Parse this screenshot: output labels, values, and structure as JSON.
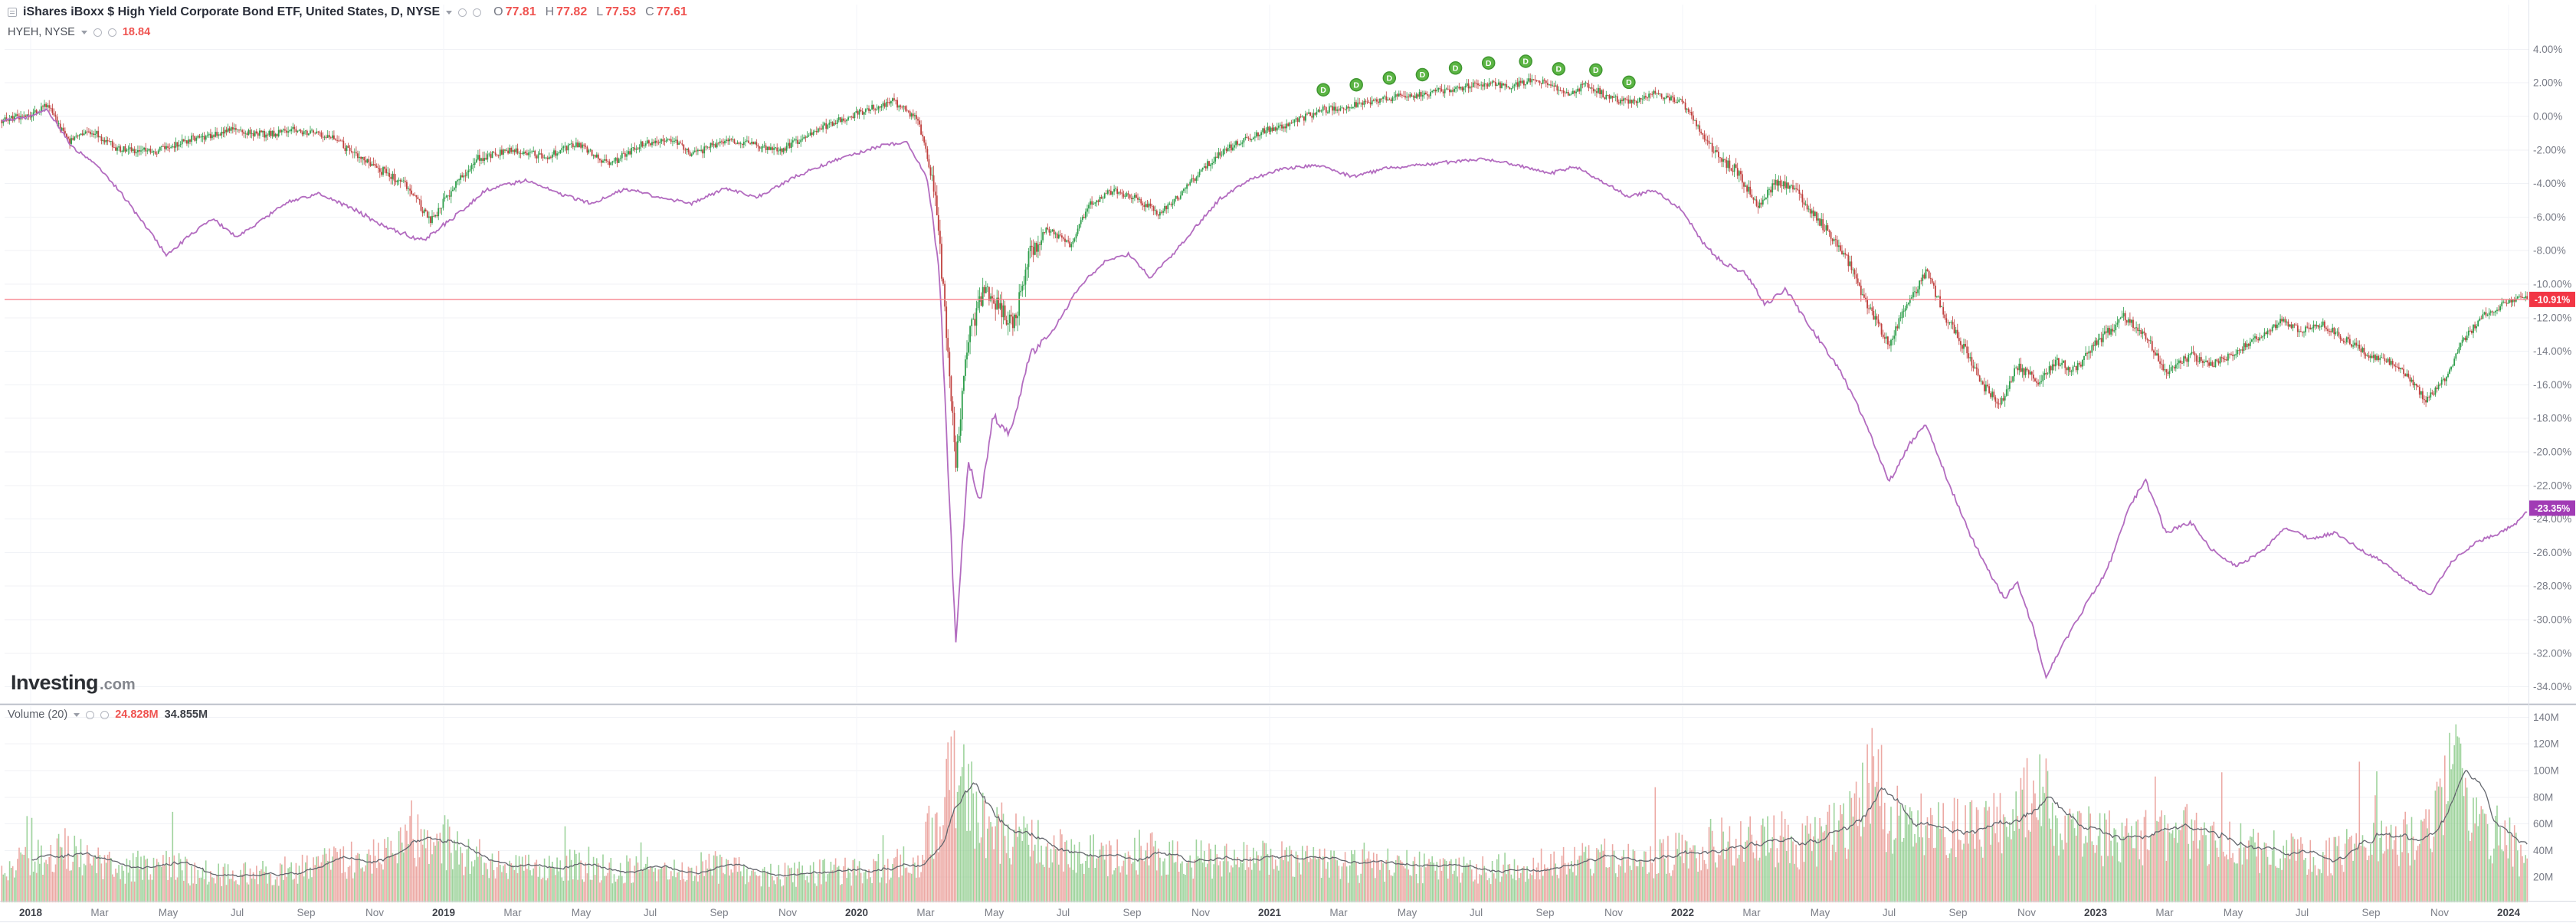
{
  "app": {
    "name": "Investing.com interactive price chart"
  },
  "header": {
    "instrument": {
      "title": "iShares iBoxx $ High Yield Corporate Bond ETF, United States, D, NYSE",
      "ohlc": {
        "o_label": "O",
        "o_value": "77.81",
        "h_label": "H",
        "h_value": "77.82",
        "l_label": "L",
        "l_value": "77.53",
        "c_label": "C",
        "c_value": "77.61"
      }
    },
    "compare": {
      "title": "HYEH, NYSE",
      "value": "18.84"
    }
  },
  "logo": {
    "brand": "Investing",
    "tld": ".com"
  },
  "volume_legend": {
    "label": "Volume (20)",
    "current": "24.828M",
    "ma": "34.855M"
  },
  "badges": {
    "last_price": "-10.91%",
    "compare": "-23.35%"
  },
  "colors": {
    "candle_up": "#2e9e4b",
    "candle_down": "#c0403e",
    "compare_line": "#b36cc0",
    "last_price_line": "#f7848e",
    "last_price_badge": "#f23645",
    "compare_badge": "#a13bb5",
    "vol_up": "#94cf92",
    "vol_down": "#eaa09b",
    "vol_ma": "#63666d",
    "marker_fill": "#5cb544",
    "marker_stroke": "#3f9630",
    "ohlc_value": "#ef5350",
    "grid": "#f0f2f6",
    "axis_text": "#787b86"
  },
  "chart_data": {
    "type": "candlestick",
    "title": "iShares iBoxx $ High Yield Corporate Bond ETF (candles) vs HYEH (line), daily % change 2018-2024",
    "x_range": [
      2017.93,
      2024.048
    ],
    "y_axis": {
      "unit": "%",
      "max": 4,
      "min": -34,
      "step": 2
    },
    "x_axis": {
      "years": [
        2018,
        2019,
        2020,
        2021,
        2022,
        2023,
        2024
      ],
      "month_labels": [
        "Mar",
        "May",
        "Jul",
        "Sep",
        "Nov"
      ],
      "month_offsets": [
        0.167,
        0.333,
        0.5,
        0.667,
        0.833
      ]
    },
    "last_price_pct": -10.91,
    "compare_last_pct": -23.35,
    "series": [
      {
        "name": "iShares iBoxx $ High Yield Corporate Bond ETF (% change, candles)",
        "anchors": [
          [
            2017.93,
            -0.2
          ],
          [
            2018.0,
            0.1
          ],
          [
            2018.04,
            0.7
          ],
          [
            2018.09,
            -1.5
          ],
          [
            2018.15,
            -0.9
          ],
          [
            2018.21,
            -1.9
          ],
          [
            2018.3,
            -2.1
          ],
          [
            2018.38,
            -1.4
          ],
          [
            2018.49,
            -0.8
          ],
          [
            2018.57,
            -1.1
          ],
          [
            2018.64,
            -0.8
          ],
          [
            2018.72,
            -1.1
          ],
          [
            2018.78,
            -2.2
          ],
          [
            2018.84,
            -3.1
          ],
          [
            2018.9,
            -3.9
          ],
          [
            2018.97,
            -6.2
          ],
          [
            2019.02,
            -4.4
          ],
          [
            2019.08,
            -2.5
          ],
          [
            2019.16,
            -2.0
          ],
          [
            2019.25,
            -2.4
          ],
          [
            2019.32,
            -1.6
          ],
          [
            2019.4,
            -2.9
          ],
          [
            2019.48,
            -1.6
          ],
          [
            2019.55,
            -1.3
          ],
          [
            2019.6,
            -2.3
          ],
          [
            2019.68,
            -1.4
          ],
          [
            2019.75,
            -1.7
          ],
          [
            2019.82,
            -2.0
          ],
          [
            2019.9,
            -0.8
          ],
          [
            2020.0,
            0.2
          ],
          [
            2020.09,
            0.9
          ],
          [
            2020.15,
            -0.3
          ],
          [
            2020.19,
            -4.5
          ],
          [
            2020.22,
            -13.5
          ],
          [
            2020.24,
            -20.6
          ],
          [
            2020.27,
            -13.0
          ],
          [
            2020.31,
            -10.4
          ],
          [
            2020.35,
            -11.6
          ],
          [
            2020.38,
            -12.4
          ],
          [
            2020.42,
            -8.2
          ],
          [
            2020.46,
            -6.6
          ],
          [
            2020.52,
            -7.8
          ],
          [
            2020.56,
            -5.3
          ],
          [
            2020.62,
            -4.4
          ],
          [
            2020.68,
            -4.9
          ],
          [
            2020.73,
            -5.8
          ],
          [
            2020.78,
            -4.8
          ],
          [
            2020.84,
            -3.0
          ],
          [
            2020.9,
            -1.9
          ],
          [
            2020.97,
            -1.0
          ],
          [
            2021.05,
            -0.4
          ],
          [
            2021.13,
            0.4
          ],
          [
            2021.21,
            0.7
          ],
          [
            2021.29,
            1.1
          ],
          [
            2021.37,
            1.3
          ],
          [
            2021.45,
            1.7
          ],
          [
            2021.53,
            2.0
          ],
          [
            2021.58,
            1.7
          ],
          [
            2021.63,
            2.2
          ],
          [
            2021.68,
            1.9
          ],
          [
            2021.72,
            1.4
          ],
          [
            2021.77,
            1.9
          ],
          [
            2021.82,
            1.1
          ],
          [
            2021.88,
            0.8
          ],
          [
            2021.93,
            1.4
          ],
          [
            2022.0,
            0.8
          ],
          [
            2022.05,
            -1.1
          ],
          [
            2022.09,
            -2.6
          ],
          [
            2022.13,
            -3.2
          ],
          [
            2022.18,
            -5.3
          ],
          [
            2022.23,
            -3.9
          ],
          [
            2022.28,
            -4.6
          ],
          [
            2022.33,
            -6.2
          ],
          [
            2022.39,
            -8.1
          ],
          [
            2022.45,
            -11.4
          ],
          [
            2022.5,
            -13.6
          ],
          [
            2022.55,
            -10.9
          ],
          [
            2022.59,
            -9.3
          ],
          [
            2022.64,
            -12.1
          ],
          [
            2022.69,
            -14.1
          ],
          [
            2022.73,
            -16.1
          ],
          [
            2022.77,
            -17.2
          ],
          [
            2022.81,
            -14.9
          ],
          [
            2022.86,
            -15.8
          ],
          [
            2022.9,
            -14.6
          ],
          [
            2022.95,
            -15.1
          ],
          [
            2023.0,
            -13.6
          ],
          [
            2023.07,
            -11.9
          ],
          [
            2023.12,
            -13.1
          ],
          [
            2023.17,
            -15.2
          ],
          [
            2023.23,
            -14.2
          ],
          [
            2023.28,
            -14.8
          ],
          [
            2023.33,
            -14.2
          ],
          [
            2023.39,
            -13.2
          ],
          [
            2023.45,
            -12.2
          ],
          [
            2023.5,
            -12.8
          ],
          [
            2023.55,
            -12.4
          ],
          [
            2023.61,
            -13.4
          ],
          [
            2023.66,
            -14.2
          ],
          [
            2023.71,
            -14.6
          ],
          [
            2023.76,
            -15.6
          ],
          [
            2023.8,
            -17.0
          ],
          [
            2023.85,
            -15.5
          ],
          [
            2023.89,
            -13.4
          ],
          [
            2023.94,
            -11.8
          ],
          [
            2023.99,
            -11.2
          ],
          [
            2024.03,
            -10.8
          ],
          [
            2024.05,
            -10.91
          ]
        ]
      },
      {
        "name": "HYEH (% change, line)",
        "anchors": [
          [
            2017.93,
            -0.3
          ],
          [
            2018.0,
            0.0
          ],
          [
            2018.04,
            0.4
          ],
          [
            2018.1,
            -1.8
          ],
          [
            2018.16,
            -2.9
          ],
          [
            2018.22,
            -4.6
          ],
          [
            2018.28,
            -6.6
          ],
          [
            2018.33,
            -8.3
          ],
          [
            2018.38,
            -7.2
          ],
          [
            2018.44,
            -6.1
          ],
          [
            2018.5,
            -7.2
          ],
          [
            2018.56,
            -6.2
          ],
          [
            2018.62,
            -5.1
          ],
          [
            2018.7,
            -4.6
          ],
          [
            2018.78,
            -5.5
          ],
          [
            2018.86,
            -6.6
          ],
          [
            2018.95,
            -7.4
          ],
          [
            2019.02,
            -6.1
          ],
          [
            2019.1,
            -4.4
          ],
          [
            2019.2,
            -3.8
          ],
          [
            2019.28,
            -4.6
          ],
          [
            2019.36,
            -5.2
          ],
          [
            2019.44,
            -4.3
          ],
          [
            2019.52,
            -4.8
          ],
          [
            2019.6,
            -5.2
          ],
          [
            2019.68,
            -4.3
          ],
          [
            2019.76,
            -4.8
          ],
          [
            2019.85,
            -3.6
          ],
          [
            2019.95,
            -2.6
          ],
          [
            2020.05,
            -1.8
          ],
          [
            2020.12,
            -1.5
          ],
          [
            2020.17,
            -3.6
          ],
          [
            2020.2,
            -9.0
          ],
          [
            2020.24,
            -31.4
          ],
          [
            2020.27,
            -20.5
          ],
          [
            2020.3,
            -23.0
          ],
          [
            2020.33,
            -17.8
          ],
          [
            2020.37,
            -19.0
          ],
          [
            2020.42,
            -14.2
          ],
          [
            2020.48,
            -12.6
          ],
          [
            2020.54,
            -10.1
          ],
          [
            2020.6,
            -8.7
          ],
          [
            2020.66,
            -8.2
          ],
          [
            2020.71,
            -9.6
          ],
          [
            2020.76,
            -8.4
          ],
          [
            2020.82,
            -6.6
          ],
          [
            2020.88,
            -4.9
          ],
          [
            2020.95,
            -3.8
          ],
          [
            2021.03,
            -3.1
          ],
          [
            2021.12,
            -2.9
          ],
          [
            2021.2,
            -3.6
          ],
          [
            2021.28,
            -3.1
          ],
          [
            2021.36,
            -2.9
          ],
          [
            2021.44,
            -2.7
          ],
          [
            2021.52,
            -2.5
          ],
          [
            2021.6,
            -2.9
          ],
          [
            2021.68,
            -3.4
          ],
          [
            2021.74,
            -3.0
          ],
          [
            2021.8,
            -3.8
          ],
          [
            2021.87,
            -4.8
          ],
          [
            2021.93,
            -4.4
          ],
          [
            2022.0,
            -5.6
          ],
          [
            2022.05,
            -7.6
          ],
          [
            2022.1,
            -8.8
          ],
          [
            2022.15,
            -9.3
          ],
          [
            2022.2,
            -11.2
          ],
          [
            2022.25,
            -10.3
          ],
          [
            2022.3,
            -12.2
          ],
          [
            2022.38,
            -15.1
          ],
          [
            2022.45,
            -18.6
          ],
          [
            2022.5,
            -21.8
          ],
          [
            2022.55,
            -19.5
          ],
          [
            2022.59,
            -18.3
          ],
          [
            2022.64,
            -21.6
          ],
          [
            2022.69,
            -24.6
          ],
          [
            2022.74,
            -27.1
          ],
          [
            2022.78,
            -28.8
          ],
          [
            2022.81,
            -27.7
          ],
          [
            2022.85,
            -30.6
          ],
          [
            2022.88,
            -33.5
          ],
          [
            2022.92,
            -31.5
          ],
          [
            2022.97,
            -29.4
          ],
          [
            2023.03,
            -26.9
          ],
          [
            2023.08,
            -23.4
          ],
          [
            2023.12,
            -21.6
          ],
          [
            2023.17,
            -24.8
          ],
          [
            2023.23,
            -24.2
          ],
          [
            2023.28,
            -25.8
          ],
          [
            2023.34,
            -26.8
          ],
          [
            2023.4,
            -26.0
          ],
          [
            2023.46,
            -24.5
          ],
          [
            2023.52,
            -25.2
          ],
          [
            2023.58,
            -24.8
          ],
          [
            2023.64,
            -25.8
          ],
          [
            2023.7,
            -26.6
          ],
          [
            2023.76,
            -27.8
          ],
          [
            2023.81,
            -28.5
          ],
          [
            2023.86,
            -26.6
          ],
          [
            2023.92,
            -25.4
          ],
          [
            2023.98,
            -24.8
          ],
          [
            2024.02,
            -24.2
          ],
          [
            2024.05,
            -23.35
          ]
        ]
      }
    ],
    "volume": {
      "name": "Volume (20)",
      "unit": "M",
      "axis": {
        "min": 20,
        "max": 140,
        "step": 20
      },
      "current": "24.828M",
      "ma": "34.855M",
      "anchors": [
        [
          2017.93,
          28
        ],
        [
          2018.0,
          31
        ],
        [
          2018.08,
          42
        ],
        [
          2018.13,
          34
        ],
        [
          2018.2,
          26
        ],
        [
          2018.3,
          30
        ],
        [
          2018.4,
          24
        ],
        [
          2018.5,
          21
        ],
        [
          2018.6,
          24
        ],
        [
          2018.7,
          30
        ],
        [
          2018.8,
          36
        ],
        [
          2018.9,
          44
        ],
        [
          2018.97,
          52
        ],
        [
          2019.05,
          38
        ],
        [
          2019.15,
          28
        ],
        [
          2019.25,
          26
        ],
        [
          2019.35,
          30
        ],
        [
          2019.45,
          26
        ],
        [
          2019.55,
          24
        ],
        [
          2019.65,
          28
        ],
        [
          2019.75,
          24
        ],
        [
          2019.85,
          22
        ],
        [
          2019.95,
          24
        ],
        [
          2020.05,
          26
        ],
        [
          2020.15,
          34
        ],
        [
          2020.2,
          70
        ],
        [
          2020.24,
          96
        ],
        [
          2020.28,
          74
        ],
        [
          2020.33,
          56
        ],
        [
          2020.4,
          48
        ],
        [
          2020.5,
          42
        ],
        [
          2020.6,
          36
        ],
        [
          2020.7,
          40
        ],
        [
          2020.8,
          34
        ],
        [
          2020.9,
          31
        ],
        [
          2021.0,
          34
        ],
        [
          2021.1,
          30
        ],
        [
          2021.2,
          28
        ],
        [
          2021.3,
          30
        ],
        [
          2021.4,
          26
        ],
        [
          2021.5,
          24
        ],
        [
          2021.6,
          28
        ],
        [
          2021.7,
          30
        ],
        [
          2021.8,
          34
        ],
        [
          2021.9,
          32
        ],
        [
          2022.0,
          40
        ],
        [
          2022.1,
          46
        ],
        [
          2022.2,
          50
        ],
        [
          2022.3,
          46
        ],
        [
          2022.4,
          56
        ],
        [
          2022.44,
          82
        ],
        [
          2022.46,
          118
        ],
        [
          2022.49,
          70
        ],
        [
          2022.55,
          58
        ],
        [
          2022.65,
          55
        ],
        [
          2022.75,
          62
        ],
        [
          2022.82,
          70
        ],
        [
          2022.86,
          108
        ],
        [
          2022.9,
          62
        ],
        [
          2023.0,
          50
        ],
        [
          2023.1,
          46
        ],
        [
          2023.18,
          60
        ],
        [
          2023.25,
          48
        ],
        [
          2023.35,
          42
        ],
        [
          2023.45,
          38
        ],
        [
          2023.55,
          36
        ],
        [
          2023.65,
          42
        ],
        [
          2023.75,
          48
        ],
        [
          2023.82,
          56
        ],
        [
          2023.86,
          104
        ],
        [
          2023.92,
          60
        ],
        [
          2024.0,
          48
        ],
        [
          2024.05,
          26
        ]
      ]
    },
    "dividend_markers": {
      "label": "D",
      "dates": [
        2021.13,
        2021.21,
        2021.29,
        2021.37,
        2021.45,
        2021.53,
        2021.62,
        2021.7,
        2021.79,
        2021.87
      ]
    }
  }
}
